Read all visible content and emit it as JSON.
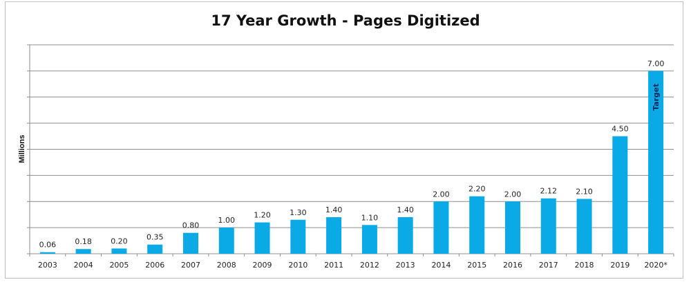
{
  "chart_data": {
    "type": "bar",
    "title": "17 Year Growth - Pages Digitized",
    "xlabel": "",
    "ylabel": "Millions",
    "ylim": [
      0,
      8
    ],
    "grid": true,
    "categories": [
      "2003",
      "2004",
      "2005",
      "2006",
      "2007",
      "2008",
      "2009",
      "2010",
      "2011",
      "2012",
      "2013",
      "2014",
      "2015",
      "2016",
      "2017",
      "2018",
      "2019",
      "2020*"
    ],
    "values": [
      0.06,
      0.18,
      0.2,
      0.35,
      0.8,
      1.0,
      1.2,
      1.3,
      1.4,
      1.1,
      1.4,
      2.0,
      2.2,
      2.0,
      2.12,
      2.1,
      4.5,
      7.0
    ],
    "data_labels": [
      "0.06",
      "0.18",
      "0.20",
      "0.35",
      "0.80",
      "1.00",
      "1.20",
      "1.30",
      "1.40",
      "1.10",
      "1.40",
      "2.00",
      "2.20",
      "2.00",
      "2.12",
      "2.10",
      "4.50",
      "7.00"
    ],
    "annotations": [
      {
        "category": "2020*",
        "text": "Target"
      }
    ],
    "colors": {
      "bar": "#0aaae6",
      "grid": "#8c8c8c",
      "annotation": "#0b2a5a"
    }
  }
}
